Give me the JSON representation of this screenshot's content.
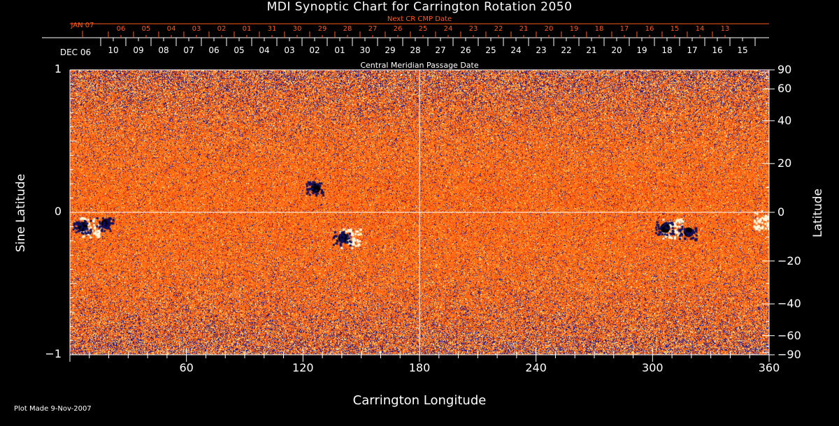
{
  "chart_data": {
    "type": "heatmap",
    "title": "MDI Synoptic Chart for Carrington Rotation 2050",
    "xlabel": "Carrington Longitude",
    "ylabel": "Sine Latitude",
    "ylabel_right": "Latitude",
    "xlim": [
      0,
      360
    ],
    "ylim": [
      -1,
      1
    ],
    "x_ticks": [
      60,
      120,
      180,
      240,
      300,
      360
    ],
    "y_ticks": [
      "1",
      "0",
      "−1"
    ],
    "y_ticks_right": [
      "90",
      "60",
      "40",
      "20",
      "0",
      "−20",
      "−40",
      "−60",
      "−90"
    ],
    "y_ticks_right_values": [
      90,
      60,
      40,
      20,
      0,
      -20,
      -40,
      -60,
      -90
    ],
    "top_axis": {
      "label": "Central Meridian Passage Date",
      "start_label": "DEC 06",
      "dates": [
        "10",
        "09",
        "08",
        "07",
        "06",
        "05",
        "04",
        "03",
        "02",
        "01",
        "30",
        "29",
        "28",
        "27",
        "26",
        "25",
        "24",
        "23",
        "22",
        "21",
        "20",
        "19",
        "18",
        "17",
        "16",
        "15"
      ]
    },
    "next_cr_axis": {
      "label": "Next CR CMP Date",
      "start_label": "JAN 07",
      "dates": [
        "06",
        "05",
        "04",
        "03",
        "02",
        "01",
        "31",
        "30",
        "29",
        "28",
        "27",
        "26",
        "25",
        "24",
        "23",
        "22",
        "21",
        "20",
        "19",
        "18",
        "17",
        "16",
        "15",
        "14",
        "13"
      ]
    },
    "active_regions": [
      {
        "lon": 8,
        "sinlat": -0.1,
        "polarity": "mixed"
      },
      {
        "lon": 20,
        "sinlat": -0.08,
        "polarity": "negative"
      },
      {
        "lon": 128,
        "sinlat": 0.17,
        "polarity": "negative"
      },
      {
        "lon": 142,
        "sinlat": -0.18,
        "polarity": "mixed"
      },
      {
        "lon": 308,
        "sinlat": -0.11,
        "polarity": "mixed"
      },
      {
        "lon": 320,
        "sinlat": -0.14,
        "polarity": "negative"
      },
      {
        "lon": 355,
        "sinlat": -0.05,
        "polarity": "positive"
      }
    ],
    "colors": {
      "background_field": "#ff5010",
      "positive": "#ffffc0",
      "negative": "#000080",
      "axis": "#ffffff",
      "next_cr": "#ff5a1a"
    },
    "grid": false
  },
  "footer": {
    "plot_made": "Plot Made  9-Nov-2007"
  }
}
